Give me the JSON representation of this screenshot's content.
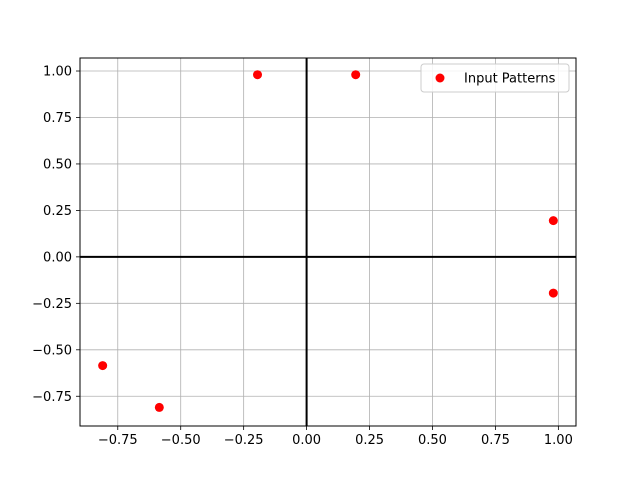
{
  "chart_data": {
    "type": "scatter",
    "title": "",
    "xlabel": "",
    "ylabel": "",
    "xlim": [
      -0.9,
      1.07
    ],
    "ylim": [
      -0.91,
      1.07
    ],
    "x_ticks": [
      -0.75,
      -0.5,
      -0.25,
      0.0,
      0.25,
      0.5,
      0.75,
      1.0
    ],
    "x_tick_labels": [
      "−0.75",
      "−0.50",
      "−0.25",
      "0.00",
      "0.25",
      "0.50",
      "0.75",
      "1.00"
    ],
    "y_ticks": [
      -0.75,
      -0.5,
      -0.25,
      0.0,
      0.25,
      0.5,
      0.75,
      1.0
    ],
    "y_tick_labels": [
      "−0.75",
      "−0.50",
      "−0.25",
      "0.00",
      "0.25",
      "0.50",
      "0.75",
      "1.00"
    ],
    "grid": true,
    "zero_axes_lines": true,
    "legend": {
      "placement": "upper-right",
      "entries": [
        "Input Patterns"
      ]
    },
    "series": [
      {
        "name": "Input Patterns",
        "color": "#ff0000",
        "x": [
          -0.195,
          0.195,
          0.98,
          0.98,
          -0.81,
          -0.585
        ],
        "y": [
          0.98,
          0.98,
          0.195,
          -0.195,
          -0.585,
          -0.81
        ]
      }
    ]
  }
}
